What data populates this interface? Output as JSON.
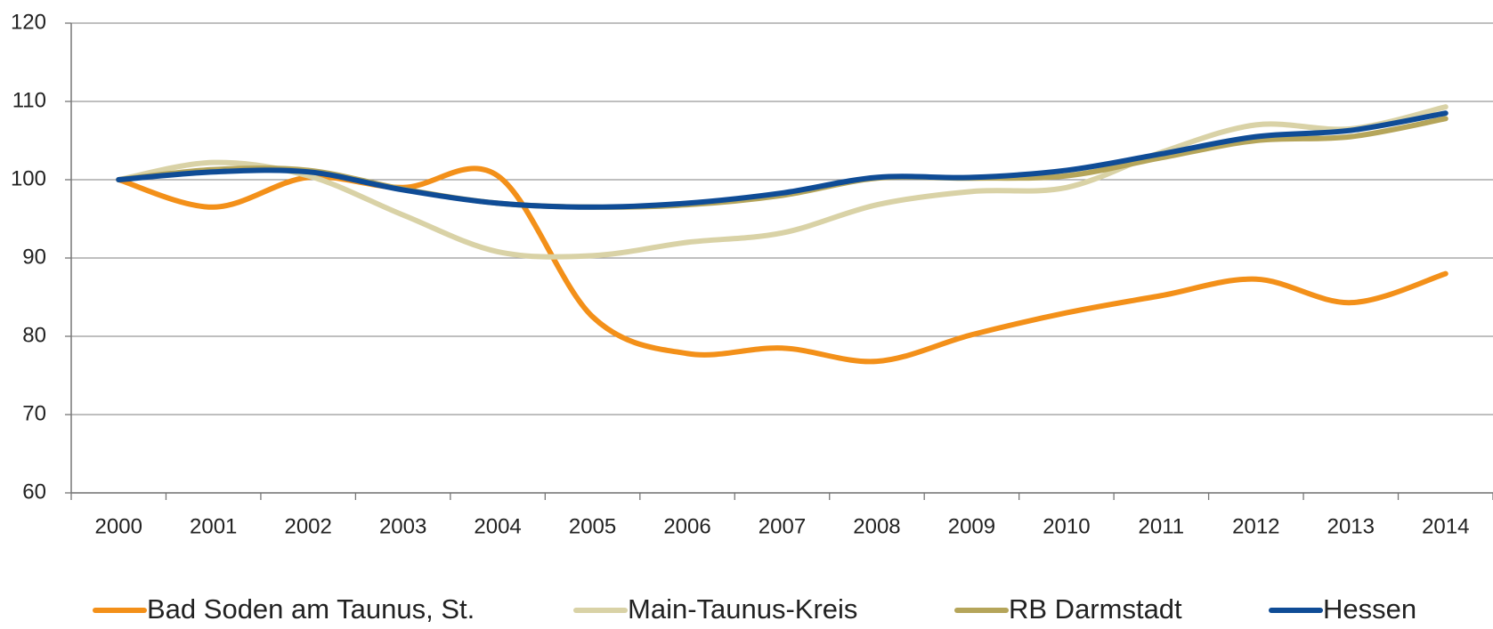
{
  "chart_data": {
    "type": "line",
    "categories": [
      "2000",
      "2001",
      "2002",
      "2003",
      "2004",
      "2005",
      "2006",
      "2007",
      "2008",
      "2009",
      "2010",
      "2011",
      "2012",
      "2013",
      "2014"
    ],
    "series": [
      {
        "name": "Bad Soden am Taunus, St.",
        "color": "#f39019",
        "values": [
          100,
          96.5,
          100.3,
          99,
          100.5,
          82.5,
          77.8,
          78.5,
          76.8,
          80.2,
          83,
          85.2,
          87.3,
          84.3,
          88
        ]
      },
      {
        "name": "Main-Taunus-Kreis",
        "color": "#d9d2a6",
        "values": [
          100,
          102.2,
          100.5,
          95.5,
          90.8,
          90.3,
          92,
          93.2,
          96.8,
          98.5,
          99,
          103.5,
          107,
          106.5,
          109.3
        ]
      },
      {
        "name": "RB Darmstadt",
        "color": "#b5a55a",
        "values": [
          100,
          101.3,
          101.2,
          98.8,
          97,
          96.5,
          96.8,
          98,
          100.2,
          100.2,
          100.5,
          102.8,
          105,
          105.5,
          107.8
        ]
      },
      {
        "name": "Hessen",
        "color": "#0f4c96",
        "values": [
          100,
          101,
          101,
          98.7,
          97,
          96.5,
          97,
          98.3,
          100.3,
          100.3,
          101.2,
          103.3,
          105.5,
          106.3,
          108.5
        ]
      }
    ],
    "ylim": [
      60,
      120
    ],
    "yticks": [
      60,
      70,
      80,
      90,
      100,
      110,
      120
    ],
    "grid": true,
    "legend": "bottom"
  }
}
